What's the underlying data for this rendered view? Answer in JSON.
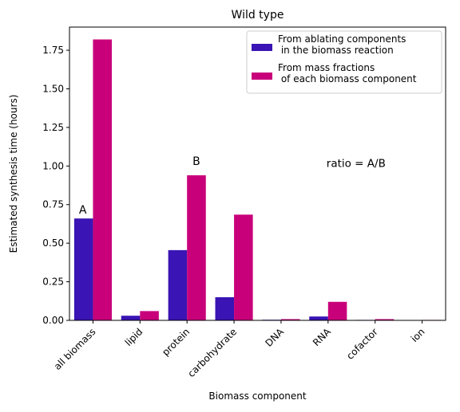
{
  "chart_data": {
    "type": "bar",
    "title": "Wild type",
    "xlabel": "Biomass component",
    "ylabel": "Estimated synthesis time (hours)",
    "ylim": [
      0,
      1.9
    ],
    "yticks": [
      "0.00",
      "0.25",
      "0.50",
      "0.75",
      "1.00",
      "1.25",
      "1.50",
      "1.75"
    ],
    "categories": [
      "all biomass",
      "lipid",
      "protein",
      "carbohydrate",
      "DNA",
      "RNA",
      "cofactor",
      "ion"
    ],
    "series": [
      {
        "name": "From ablating components\n in the biomass reaction",
        "color": "#3a14b4",
        "values": [
          0.66,
          0.03,
          0.455,
          0.15,
          0.004,
          0.025,
          0.003,
          0.002
        ]
      },
      {
        "name": "From mass fractions\n of each biomass component",
        "color": "#c8007a",
        "values": [
          1.82,
          0.06,
          0.94,
          0.685,
          0.008,
          0.12,
          0.008,
          0.003
        ]
      }
    ],
    "legend_position": "top-right",
    "annotations": [
      {
        "text": "A",
        "x": "all biomass",
        "y": 0.66
      },
      {
        "text": "B",
        "x": "protein",
        "y": 0.94
      },
      {
        "text": "ratio = A/B",
        "x": "RNA",
        "y": 1.0
      }
    ],
    "grid": false
  }
}
